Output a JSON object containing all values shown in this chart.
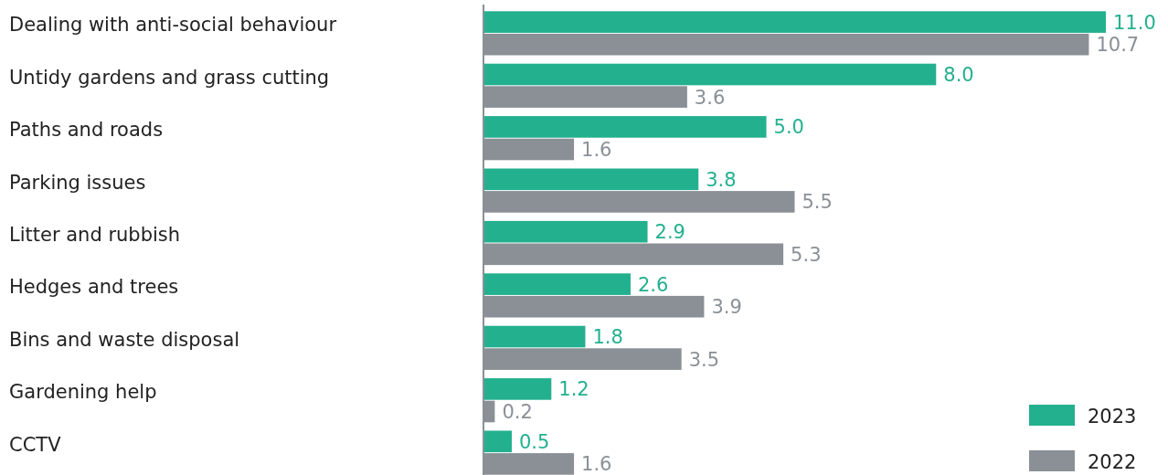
{
  "chart_data": {
    "type": "bar",
    "orientation": "horizontal",
    "categories": [
      "Dealing with anti-social behaviour",
      "Untidy gardens and grass cutting",
      "Paths and roads",
      "Parking issues",
      "Litter and rubbish",
      "Hedges and trees",
      "Bins and waste disposal",
      "Gardening help",
      "CCTV"
    ],
    "series": [
      {
        "name": "2023",
        "color": "#23b08f",
        "values": [
          11.0,
          8.0,
          5.0,
          3.8,
          2.9,
          2.6,
          1.8,
          1.2,
          0.5
        ],
        "value_labels": [
          "11.0",
          "8.0",
          "5.0",
          "3.8",
          "2.9",
          "2.6",
          "1.8",
          "1.2",
          "0.5"
        ]
      },
      {
        "name": "2022",
        "color": "#8a9096",
        "values": [
          10.7,
          3.6,
          1.6,
          5.5,
          5.3,
          3.9,
          3.5,
          0.2,
          1.6
        ],
        "value_labels": [
          "10.7",
          "3.6",
          "1.6",
          "5.5",
          "5.3",
          "3.9",
          "3.5",
          "0.2",
          "1.6"
        ]
      }
    ],
    "xlim": [
      0,
      11
    ],
    "legend": "bottom right"
  }
}
